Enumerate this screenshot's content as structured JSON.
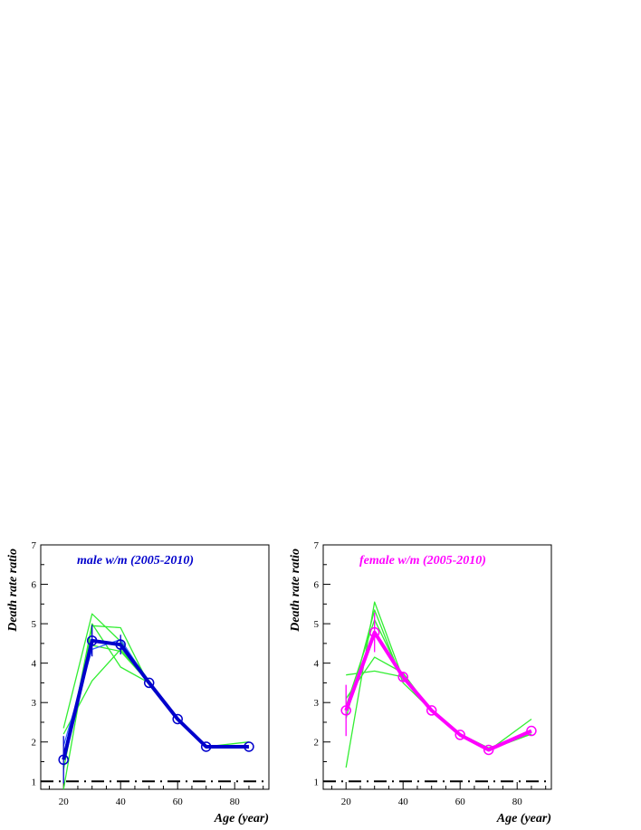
{
  "chart_data": [
    {
      "type": "line",
      "title": "male w/m (2005-2010)",
      "title_color": "#0000cc",
      "xlabel": "Age (year)",
      "ylabel": "Death rate ratio",
      "xlim": [
        12,
        92
      ],
      "ylim": [
        0.8,
        7
      ],
      "xticks": [
        20,
        40,
        60,
        80
      ],
      "yticks": [
        1,
        2,
        3,
        4,
        5,
        6,
        7
      ],
      "reference_line": 1,
      "series": [
        {
          "role": "mean",
          "color": "#0000cc",
          "x": [
            20,
            30,
            40,
            50,
            60,
            70,
            85
          ],
          "y": [
            1.55,
            4.57,
            4.47,
            3.5,
            2.58,
            1.88,
            1.88
          ],
          "err": [
            0.6,
            0.4,
            0.25,
            0.05,
            0.05,
            0.05,
            0.05
          ]
        },
        {
          "role": "year",
          "color": "#33ee33",
          "x": [
            20,
            30,
            40,
            50,
            60,
            70,
            85
          ],
          "y": [
            2.35,
            5.25,
            4.55,
            3.55,
            2.6,
            1.9,
            1.85
          ]
        },
        {
          "role": "year",
          "color": "#33ee33",
          "x": [
            20,
            30,
            40,
            50,
            60,
            70,
            85
          ],
          "y": [
            2.2,
            3.55,
            4.35,
            3.5,
            2.55,
            1.88,
            1.85
          ]
        },
        {
          "role": "year",
          "color": "#33ee33",
          "x": [
            20,
            30,
            40,
            50,
            60,
            70,
            85
          ],
          "y": [
            0.8,
            4.95,
            4.9,
            3.45,
            2.55,
            1.85,
            1.85
          ]
        },
        {
          "role": "year",
          "color": "#33ee33",
          "x": [
            20,
            30,
            40,
            50,
            60,
            70,
            85
          ],
          "y": [
            1.3,
            5.0,
            3.9,
            3.5,
            2.6,
            1.88,
            2.0
          ]
        },
        {
          "role": "year",
          "color": "#33ee33",
          "x": [
            20,
            30,
            40,
            50,
            60,
            70,
            85
          ],
          "y": [
            1.7,
            4.45,
            4.3,
            3.5,
            2.58,
            1.9,
            1.85
          ]
        },
        {
          "role": "year",
          "color": "#3366ff",
          "x": [
            20,
            30,
            40,
            50,
            60,
            70,
            85
          ],
          "y": [
            1.9,
            4.35,
            4.6,
            3.5,
            2.6,
            1.88,
            1.88
          ]
        }
      ]
    },
    {
      "type": "line",
      "title": "female w/m (2005-2010)",
      "title_color": "#ff00ff",
      "xlabel": "Age (year)",
      "ylabel": "Death rate ratio",
      "xlim": [
        12,
        92
      ],
      "ylim": [
        0.8,
        7
      ],
      "xticks": [
        20,
        40,
        60,
        80
      ],
      "yticks": [
        1,
        2,
        3,
        4,
        5,
        6,
        7
      ],
      "reference_line": 1,
      "series": [
        {
          "role": "mean",
          "color": "#ff00ff",
          "x": [
            20,
            30,
            40,
            50,
            60,
            70,
            85
          ],
          "y": [
            2.8,
            4.78,
            3.65,
            2.8,
            2.18,
            1.8,
            2.28
          ],
          "err": [
            0.65,
            0.5,
            0.1,
            0.05,
            0.05,
            0.05,
            0.05
          ]
        },
        {
          "role": "year",
          "color": "#33ee33",
          "x": [
            20,
            30,
            40,
            50,
            60,
            70,
            85
          ],
          "y": [
            3.7,
            3.8,
            3.65,
            2.8,
            2.2,
            1.85,
            2.2
          ]
        },
        {
          "role": "year",
          "color": "#33ee33",
          "x": [
            20,
            30,
            40,
            50,
            60,
            70,
            85
          ],
          "y": [
            1.35,
            5.55,
            3.6,
            2.8,
            2.2,
            1.8,
            2.25
          ]
        },
        {
          "role": "year",
          "color": "#33ee33",
          "x": [
            20,
            30,
            40,
            50,
            60,
            70,
            85
          ],
          "y": [
            3.1,
            4.15,
            3.75,
            2.78,
            2.15,
            1.78,
            2.58
          ]
        },
        {
          "role": "year",
          "color": "#33ee33",
          "x": [
            20,
            30,
            40,
            50,
            60,
            70,
            85
          ],
          "y": [
            2.6,
            5.35,
            3.5,
            2.8,
            2.18,
            1.8,
            2.2
          ]
        },
        {
          "role": "year",
          "color": "#33ee33",
          "x": [
            20,
            30,
            40,
            50,
            60,
            70,
            85
          ],
          "y": [
            2.9,
            5.1,
            3.6,
            2.8,
            2.2,
            1.82,
            2.25
          ]
        }
      ]
    }
  ]
}
